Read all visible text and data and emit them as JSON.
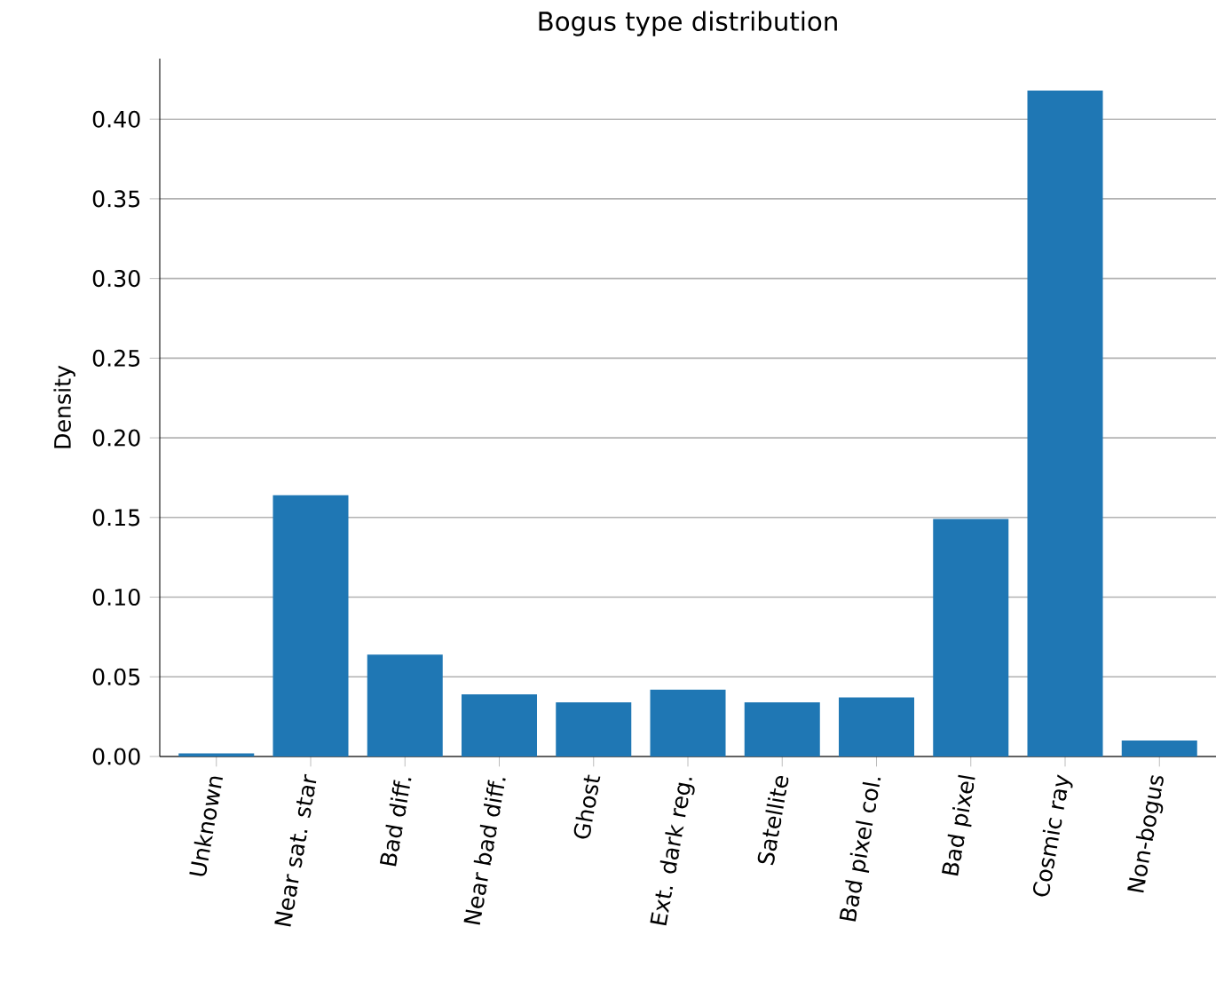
{
  "chart_data": {
    "type": "bar",
    "title": "Bogus type distribution",
    "ylabel": "Density",
    "categories": [
      "Unknown",
      "Near sat. star",
      "Bad diff.",
      "Near bad diff.",
      "Ghost",
      "Ext. dark reg.",
      "Satellite",
      "Bad pixel col.",
      "Bad pixel",
      "Cosmic ray",
      "Non-bogus"
    ],
    "values": [
      0.002,
      0.164,
      0.064,
      0.039,
      0.034,
      0.042,
      0.034,
      0.037,
      0.149,
      0.418,
      0.01
    ],
    "color": "#1f77b4",
    "ylim": [
      0,
      0.438
    ],
    "yticks": [
      {
        "value": 0,
        "label": "0.00"
      },
      {
        "value": 0.05,
        "label": "0.05"
      },
      {
        "value": 0.1,
        "label": "0.10"
      },
      {
        "value": 0.15,
        "label": "0.15"
      },
      {
        "value": 0.2,
        "label": "0.20"
      },
      {
        "value": 0.25,
        "label": "0.25"
      },
      {
        "value": 0.3,
        "label": "0.30"
      },
      {
        "value": 0.35,
        "label": "0.35"
      },
      {
        "value": 0.4,
        "label": "0.40"
      }
    ],
    "grid": "y"
  }
}
